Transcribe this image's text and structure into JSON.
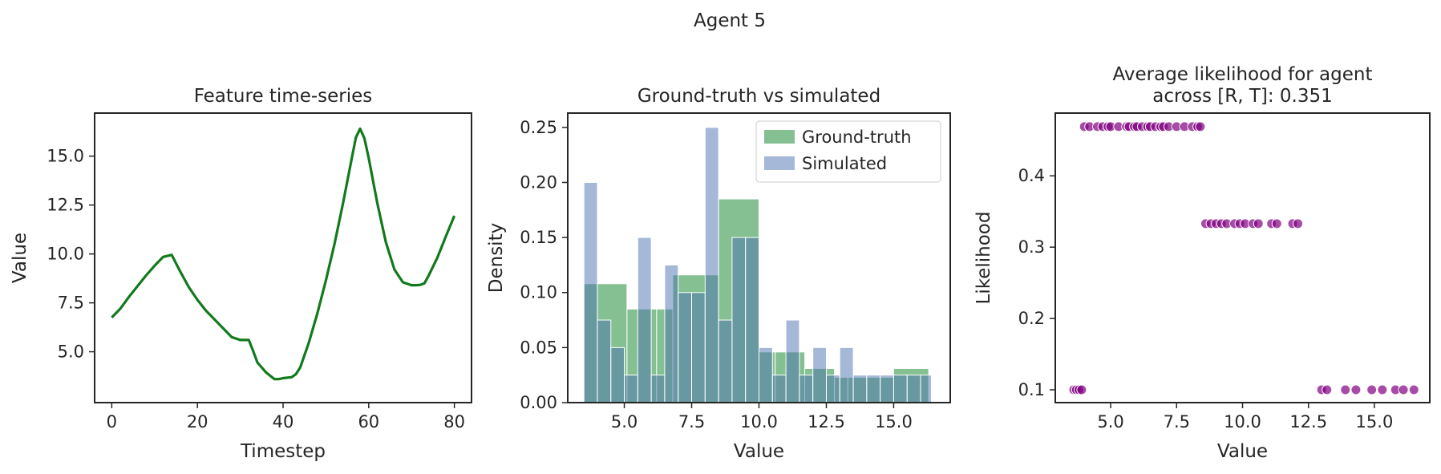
{
  "figure": {
    "suptitle": "Agent 5"
  },
  "chart_data": [
    {
      "type": "line",
      "title": "Feature time-series",
      "xlabel": "Timestep",
      "ylabel": "Value",
      "xlim": [
        -4,
        84
      ],
      "ylim": [
        2.4,
        17.2
      ],
      "xticks": [
        0,
        20,
        40,
        60,
        80
      ],
      "xtick_labels": [
        "0",
        "20",
        "40",
        "60",
        "80"
      ],
      "yticks": [
        5.0,
        7.5,
        10.0,
        12.5,
        15.0
      ],
      "ytick_labels": [
        "5.0",
        "7.5",
        "10.0",
        "12.5",
        "15.0"
      ],
      "color": "#117a1c",
      "series": [
        {
          "x": [
            0,
            2,
            4,
            6,
            8,
            10,
            12,
            13,
            14,
            16,
            18,
            20,
            22,
            24,
            26,
            28,
            30,
            31,
            32,
            33,
            34,
            36,
            38,
            39,
            40,
            42,
            43,
            44,
            46,
            48,
            50,
            52,
            54,
            56,
            57,
            58,
            59,
            60,
            62,
            64,
            66,
            68,
            70,
            71,
            72,
            73,
            74,
            76,
            78,
            80
          ],
          "y": [
            6.75,
            7.2,
            7.8,
            8.35,
            8.9,
            9.4,
            9.85,
            9.9,
            9.95,
            9.1,
            8.3,
            7.65,
            7.1,
            6.65,
            6.2,
            5.75,
            5.6,
            5.6,
            5.6,
            5.05,
            4.45,
            3.95,
            3.6,
            3.6,
            3.65,
            3.7,
            3.85,
            4.2,
            5.45,
            6.95,
            8.65,
            10.5,
            12.6,
            14.85,
            15.95,
            16.4,
            15.9,
            14.9,
            12.6,
            10.6,
            9.2,
            8.55,
            8.4,
            8.4,
            8.42,
            8.5,
            8.9,
            9.8,
            10.9,
            11.95
          ]
        }
      ]
    },
    {
      "type": "bar",
      "title": "Ground-truth vs simulated",
      "xlabel": "Value",
      "ylabel": "Density",
      "xlim": [
        2.9,
        17.1
      ],
      "ylim": [
        0,
        0.263
      ],
      "xticks": [
        5.0,
        7.5,
        10.0,
        12.5,
        15.0
      ],
      "xtick_labels": [
        "5.0",
        "7.5",
        "10.0",
        "12.5",
        "15.0"
      ],
      "yticks": [
        0.0,
        0.05,
        0.1,
        0.15,
        0.2,
        0.25
      ],
      "ytick_labels": [
        "0.00",
        "0.05",
        "0.10",
        "0.15",
        "0.20",
        "0.25"
      ],
      "legend": {
        "position": "top-right",
        "entries": [
          "Ground-truth",
          "Simulated"
        ]
      },
      "series": [
        {
          "name": "Ground-truth",
          "color": "#55a868",
          "bins": [
            [
              3.5,
              4.0,
              0.108
            ],
            [
              4.0,
              5.1,
              0.108
            ],
            [
              5.1,
              6.2,
              0.085
            ],
            [
              6.2,
              6.8,
              0.085
            ],
            [
              6.8,
              8.5,
              0.116
            ],
            [
              8.5,
              10.0,
              0.185
            ],
            [
              10.0,
              10.6,
              0.046
            ],
            [
              10.6,
              11.7,
              0.046
            ],
            [
              11.7,
              12.8,
              0.031
            ],
            [
              12.8,
              13.3,
              0.023
            ],
            [
              13.3,
              15.0,
              0.023
            ],
            [
              15.0,
              16.3,
              0.031
            ]
          ]
        },
        {
          "name": "Simulated",
          "color": "#4c72b0",
          "bins": [
            [
              3.5,
              4.0,
              0.2
            ],
            [
              4.0,
              4.5,
              0.075
            ],
            [
              4.5,
              5.0,
              0.05
            ],
            [
              5.0,
              5.5,
              0.025
            ],
            [
              5.5,
              6.0,
              0.15
            ],
            [
              6.0,
              6.5,
              0.025
            ],
            [
              6.5,
              7.0,
              0.125
            ],
            [
              7.0,
              7.5,
              0.1
            ],
            [
              7.5,
              8.0,
              0.1
            ],
            [
              8.0,
              8.5,
              0.25
            ],
            [
              8.5,
              9.0,
              0.075
            ],
            [
              9.0,
              9.5,
              0.15
            ],
            [
              9.5,
              10.0,
              0.15
            ],
            [
              10.0,
              10.5,
              0.05
            ],
            [
              10.5,
              11.0,
              0.025
            ],
            [
              11.0,
              11.5,
              0.075
            ],
            [
              11.5,
              12.0,
              0.025
            ],
            [
              12.0,
              12.5,
              0.05
            ],
            [
              12.5,
              13.0,
              0.025
            ],
            [
              13.0,
              13.5,
              0.05
            ],
            [
              13.5,
              14.0,
              0.025
            ],
            [
              14.0,
              14.5,
              0.025
            ],
            [
              14.5,
              15.0,
              0.025
            ],
            [
              15.0,
              15.5,
              0.025
            ],
            [
              15.5,
              16.0,
              0.025
            ],
            [
              16.0,
              16.4,
              0.025
            ]
          ]
        }
      ]
    },
    {
      "type": "scatter",
      "title_line1": "Average likelihood for agent",
      "title_line2": "across [R, T]: 0.351",
      "xlabel": "Value",
      "ylabel": "Likelihood",
      "xlim": [
        2.9,
        17.1
      ],
      "ylim": [
        0.082,
        0.488
      ],
      "xticks": [
        5.0,
        7.5,
        10.0,
        12.5,
        15.0
      ],
      "xtick_labels": [
        "5.0",
        "7.5",
        "10.0",
        "12.5",
        "15.0"
      ],
      "yticks": [
        0.1,
        0.2,
        0.3,
        0.4
      ],
      "ytick_labels": [
        "0.1",
        "0.2",
        "0.3",
        "0.4"
      ],
      "color": "#800080",
      "points": [
        [
          3.6,
          0.1
        ],
        [
          3.7,
          0.1
        ],
        [
          3.8,
          0.1
        ],
        [
          3.9,
          0.1
        ],
        [
          4.0,
          0.469
        ],
        [
          4.2,
          0.469
        ],
        [
          4.5,
          0.469
        ],
        [
          4.7,
          0.469
        ],
        [
          4.9,
          0.469
        ],
        [
          5.0,
          0.469
        ],
        [
          5.3,
          0.469
        ],
        [
          5.6,
          0.469
        ],
        [
          5.7,
          0.469
        ],
        [
          5.9,
          0.469
        ],
        [
          6.0,
          0.469
        ],
        [
          6.2,
          0.469
        ],
        [
          6.4,
          0.469
        ],
        [
          6.5,
          0.469
        ],
        [
          6.7,
          0.469
        ],
        [
          6.9,
          0.469
        ],
        [
          7.0,
          0.469
        ],
        [
          7.2,
          0.469
        ],
        [
          7.5,
          0.469
        ],
        [
          7.8,
          0.469
        ],
        [
          8.1,
          0.469
        ],
        [
          8.3,
          0.469
        ],
        [
          8.4,
          0.469
        ],
        [
          8.6,
          0.333
        ],
        [
          8.8,
          0.333
        ],
        [
          9.0,
          0.333
        ],
        [
          9.2,
          0.333
        ],
        [
          9.4,
          0.333
        ],
        [
          9.7,
          0.333
        ],
        [
          9.9,
          0.333
        ],
        [
          10.1,
          0.333
        ],
        [
          10.4,
          0.333
        ],
        [
          10.6,
          0.333
        ],
        [
          11.1,
          0.333
        ],
        [
          11.3,
          0.333
        ],
        [
          11.9,
          0.333
        ],
        [
          12.1,
          0.333
        ],
        [
          13.0,
          0.1
        ],
        [
          13.2,
          0.1
        ],
        [
          13.9,
          0.1
        ],
        [
          14.3,
          0.1
        ],
        [
          14.9,
          0.1
        ],
        [
          15.3,
          0.1
        ],
        [
          15.8,
          0.1
        ],
        [
          16.1,
          0.1
        ],
        [
          16.5,
          0.1
        ]
      ]
    }
  ]
}
